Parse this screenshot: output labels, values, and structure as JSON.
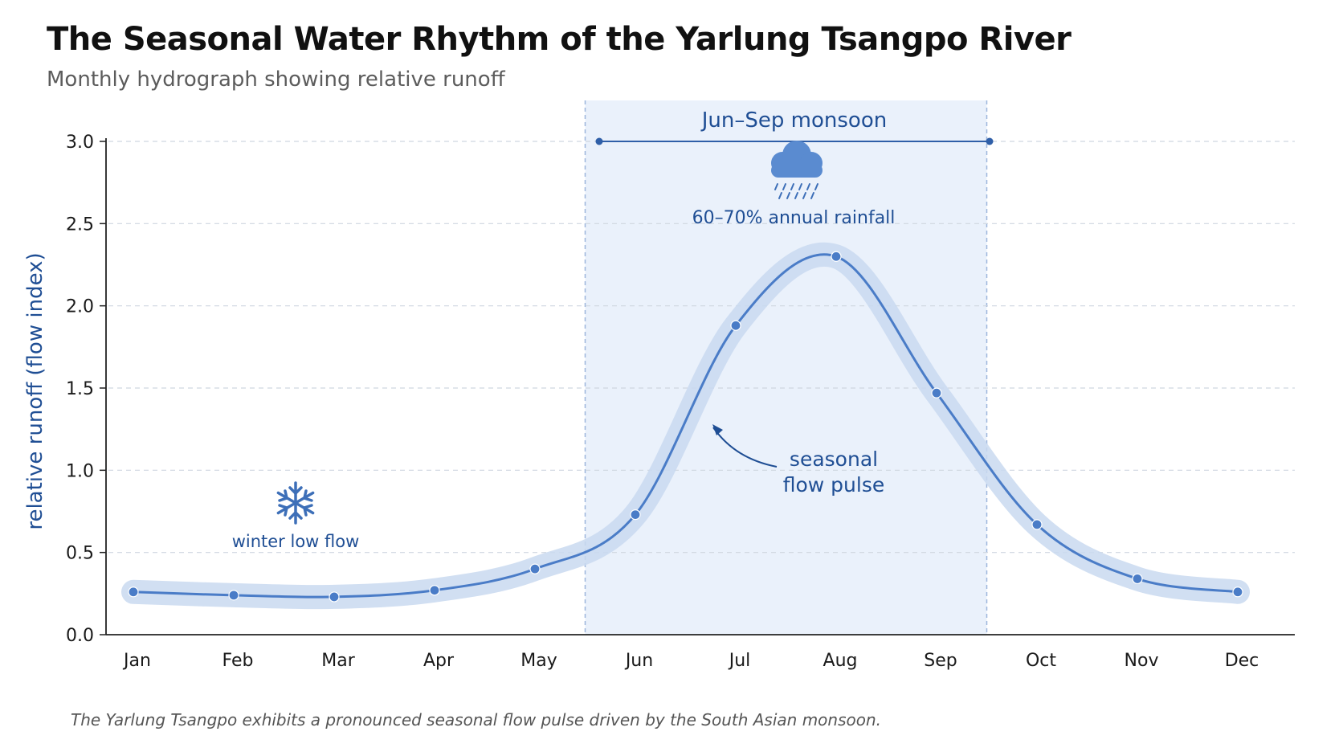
{
  "title": "The Seasonal Water Rhythm of the Yarlung Tsangpo River",
  "subtitle": "Monthly hydrograph showing relative runoff",
  "caption": "The Yarlung Tsangpo exhibits a pronounced seasonal flow pulse driven by the South Asian monsoon.",
  "colors": {
    "line": "#4a7cc7",
    "band": "#c9d9f0",
    "monsoon_shade": "#eaf1fb",
    "annotation": "#1f4e94",
    "grid": "#cfd6e0"
  },
  "chart_data": {
    "type": "line",
    "title": "The Seasonal Water Rhythm of the Yarlung Tsangpo River",
    "subtitle": "Monthly hydrograph showing relative runoff",
    "xlabel": "",
    "ylabel": "relative runoff (flow index)",
    "categories": [
      "Jan",
      "Feb",
      "Mar",
      "Apr",
      "May",
      "Jun",
      "Jul",
      "Aug",
      "Sep",
      "Oct",
      "Nov",
      "Dec"
    ],
    "series": [
      {
        "values": [
          0.26,
          0.24,
          0.23,
          0.27,
          0.4,
          0.73,
          1.88,
          2.3,
          1.47,
          0.67,
          0.34,
          0.26
        ]
      }
    ],
    "ylim": [
      0,
      3.0
    ],
    "yticks": [
      "0.0",
      "0.5",
      "1.0",
      "1.5",
      "2.0",
      "2.5",
      "3.0"
    ],
    "grid": true,
    "uncertainty_band": true,
    "annotations": {
      "monsoon_label": "Jun–Sep monsoon",
      "rainfall_label": "60–70% annual rainfall",
      "pulse_label_line1": "seasonal",
      "pulse_label_line2": "flow pulse",
      "winter_label": "winter low flow",
      "monsoon_icon": "rain-cloud-icon",
      "winter_icon": "snowflake-icon"
    }
  }
}
